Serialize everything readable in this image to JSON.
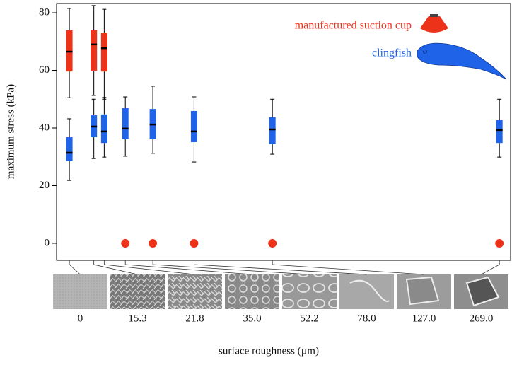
{
  "chart_data": {
    "type": "box",
    "xlabel": "surface roughness (µm)",
    "ylabel": "maximum stress (kPa)",
    "x": [
      0,
      15.3,
      21.8,
      35.0,
      52.2,
      78.0,
      127.0,
      269.0
    ],
    "xlim": [
      -8,
      276
    ],
    "ylim": [
      -5.9,
      83.2
    ],
    "yticks": [
      0,
      20,
      40,
      60,
      80
    ],
    "xticks": [
      0,
      15.3,
      21.8,
      {
        "value": 35,
        "label": "35.0"
      },
      52.2,
      {
        "value": 78,
        "label": "78.0"
      },
      {
        "value": 127,
        "label": "127.0"
      },
      {
        "value": 269,
        "label": "269.0"
      }
    ],
    "series": [
      {
        "name": "manufactured suction cup",
        "color": "#ec3219",
        "min": [
          50.5,
          51.3,
          50.0,
          null,
          null,
          null,
          null,
          null
        ],
        "q1": [
          59.6,
          59.9,
          59.6,
          null,
          null,
          null,
          null,
          null
        ],
        "median": [
          66.5,
          69.0,
          67.7,
          null,
          null,
          null,
          null,
          null
        ],
        "q3": [
          73.9,
          73.9,
          73.1,
          null,
          null,
          null,
          null,
          null
        ],
        "max": [
          81.5,
          82.5,
          81.2,
          null,
          null,
          null,
          null,
          null
        ],
        "values": [
          null,
          null,
          null,
          0,
          0,
          0,
          0,
          0
        ]
      },
      {
        "name": "clingfish",
        "color": "#1f63e8",
        "min": [
          21.8,
          29.4,
          29.9,
          30.2,
          31.2,
          28.2,
          30.9,
          29.9
        ],
        "q1": [
          28.5,
          36.8,
          34.8,
          36.1,
          36.1,
          35.1,
          34.4,
          34.8
        ],
        "median": [
          31.4,
          40.5,
          38.8,
          39.8,
          41.2,
          38.8,
          39.5,
          39.3
        ],
        "q3": [
          36.8,
          44.4,
          44.7,
          46.9,
          46.6,
          45.9,
          43.7,
          42.7
        ],
        "max": [
          43.2,
          50.0,
          50.6,
          50.8,
          54.5,
          50.8,
          50.0,
          50.0
        ],
        "values": [
          null,
          null,
          null,
          null,
          null,
          null,
          null,
          null
        ]
      }
    ]
  }
}
